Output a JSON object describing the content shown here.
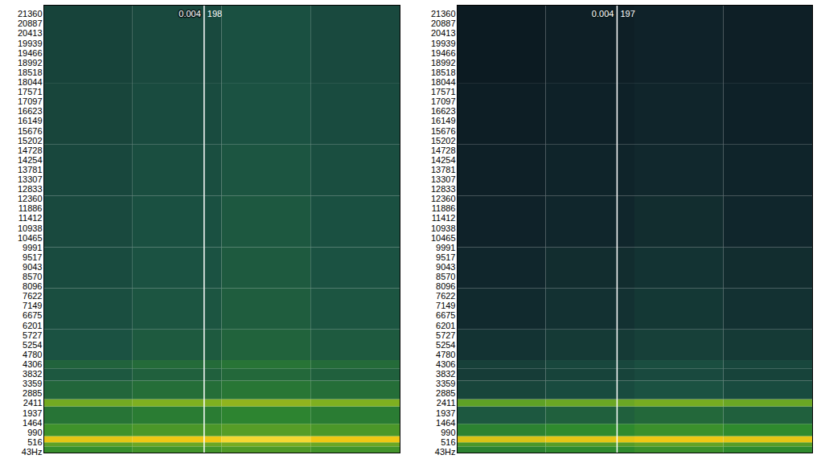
{
  "chart_data": [
    {
      "type": "heatmap",
      "tick_labels": "y",
      "ylim": [
        0,
        21800
      ],
      "yticks": [
        21360,
        20887,
        20413,
        19939,
        19466,
        18992,
        18518,
        18044,
        17571,
        17097,
        16623,
        16149,
        15676,
        15202,
        14728,
        14254,
        13781,
        13307,
        12833,
        12360,
        11886,
        11412,
        10938,
        10465,
        9991,
        9517,
        9043,
        8570,
        8096,
        7622,
        7149,
        6675,
        6201,
        5727,
        5254,
        4780,
        4306,
        3832,
        3359,
        2885,
        2411,
        1937,
        1464,
        990,
        516,
        {
          "value": 43,
          "label": "43Hz"
        }
      ],
      "xlim": [
        0,
        4
      ],
      "time_bins": [
        0,
        1,
        2,
        3,
        4
      ],
      "frequency_bins": [
        0,
        300,
        500,
        800,
        1400,
        2250,
        2600,
        3500,
        4100,
        4500,
        6000,
        8000,
        10000,
        12500,
        15000,
        18000,
        21800
      ],
      "zlim": [
        0,
        100
      ],
      "cells": [
        [
          57,
          60,
          63,
          60
        ],
        [
          67,
          70,
          73,
          70
        ],
        [
          93,
          95,
          97,
          95
        ],
        [
          59,
          62,
          65,
          62
        ],
        [
          47,
          50,
          53,
          50
        ],
        [
          72,
          75,
          78,
          75
        ],
        [
          42,
          45,
          48,
          45
        ],
        [
          37,
          40,
          43,
          40
        ],
        [
          41,
          44,
          47,
          44
        ],
        [
          35,
          38,
          41,
          38
        ],
        [
          33,
          36,
          39,
          36
        ],
        [
          32,
          35,
          38,
          35
        ],
        [
          31,
          34,
          37,
          34
        ],
        [
          30,
          33,
          36,
          33
        ],
        [
          29,
          32,
          35,
          32
        ],
        [
          28,
          31,
          34,
          31
        ]
      ],
      "cursor": {
        "x": 1.8,
        "time": 0.004,
        "value": 198
      }
    },
    {
      "type": "heatmap",
      "tick_labels": "y",
      "ylim": [
        0,
        21800
      ],
      "yticks": [
        21360,
        20887,
        20413,
        19939,
        19466,
        18992,
        18518,
        18044,
        17571,
        17097,
        16623,
        16149,
        15676,
        15202,
        14728,
        14254,
        13781,
        13307,
        12833,
        12360,
        11886,
        11412,
        10938,
        10465,
        9991,
        9517,
        9043,
        8570,
        8096,
        7622,
        7149,
        6675,
        6201,
        5727,
        5254,
        4780,
        4306,
        3832,
        3359,
        2885,
        2411,
        1937,
        1464,
        990,
        516,
        {
          "value": 43,
          "label": "43Hz"
        }
      ],
      "xlim": [
        0,
        4
      ],
      "time_bins": [
        0,
        1,
        2,
        3,
        4
      ],
      "frequency_bins": [
        0,
        300,
        500,
        800,
        1400,
        2250,
        2600,
        3500,
        4100,
        4500,
        6000,
        8000,
        10000,
        12500,
        15000,
        18000,
        21800
      ],
      "zlim": [
        0,
        100
      ],
      "cells": [
        [
          52,
          55,
          58,
          55
        ],
        [
          62,
          65,
          68,
          65
        ],
        [
          91,
          93,
          95,
          93
        ],
        [
          52,
          55,
          58,
          55
        ],
        [
          37,
          40,
          43,
          40
        ],
        [
          67,
          70,
          73,
          70
        ],
        [
          29,
          32,
          35,
          32
        ],
        [
          25,
          28,
          31,
          28
        ],
        [
          27,
          30,
          33,
          30
        ],
        [
          21,
          24,
          27,
          24
        ],
        [
          17,
          20,
          23,
          20
        ],
        [
          15,
          18,
          21,
          18
        ],
        [
          12,
          15,
          18,
          15
        ],
        [
          10,
          13,
          16,
          13
        ],
        [
          8,
          11,
          14,
          11
        ],
        [
          6,
          9,
          12,
          9
        ]
      ],
      "cursor": {
        "x": 1.8,
        "time": 0.004,
        "value": 197
      }
    }
  ]
}
